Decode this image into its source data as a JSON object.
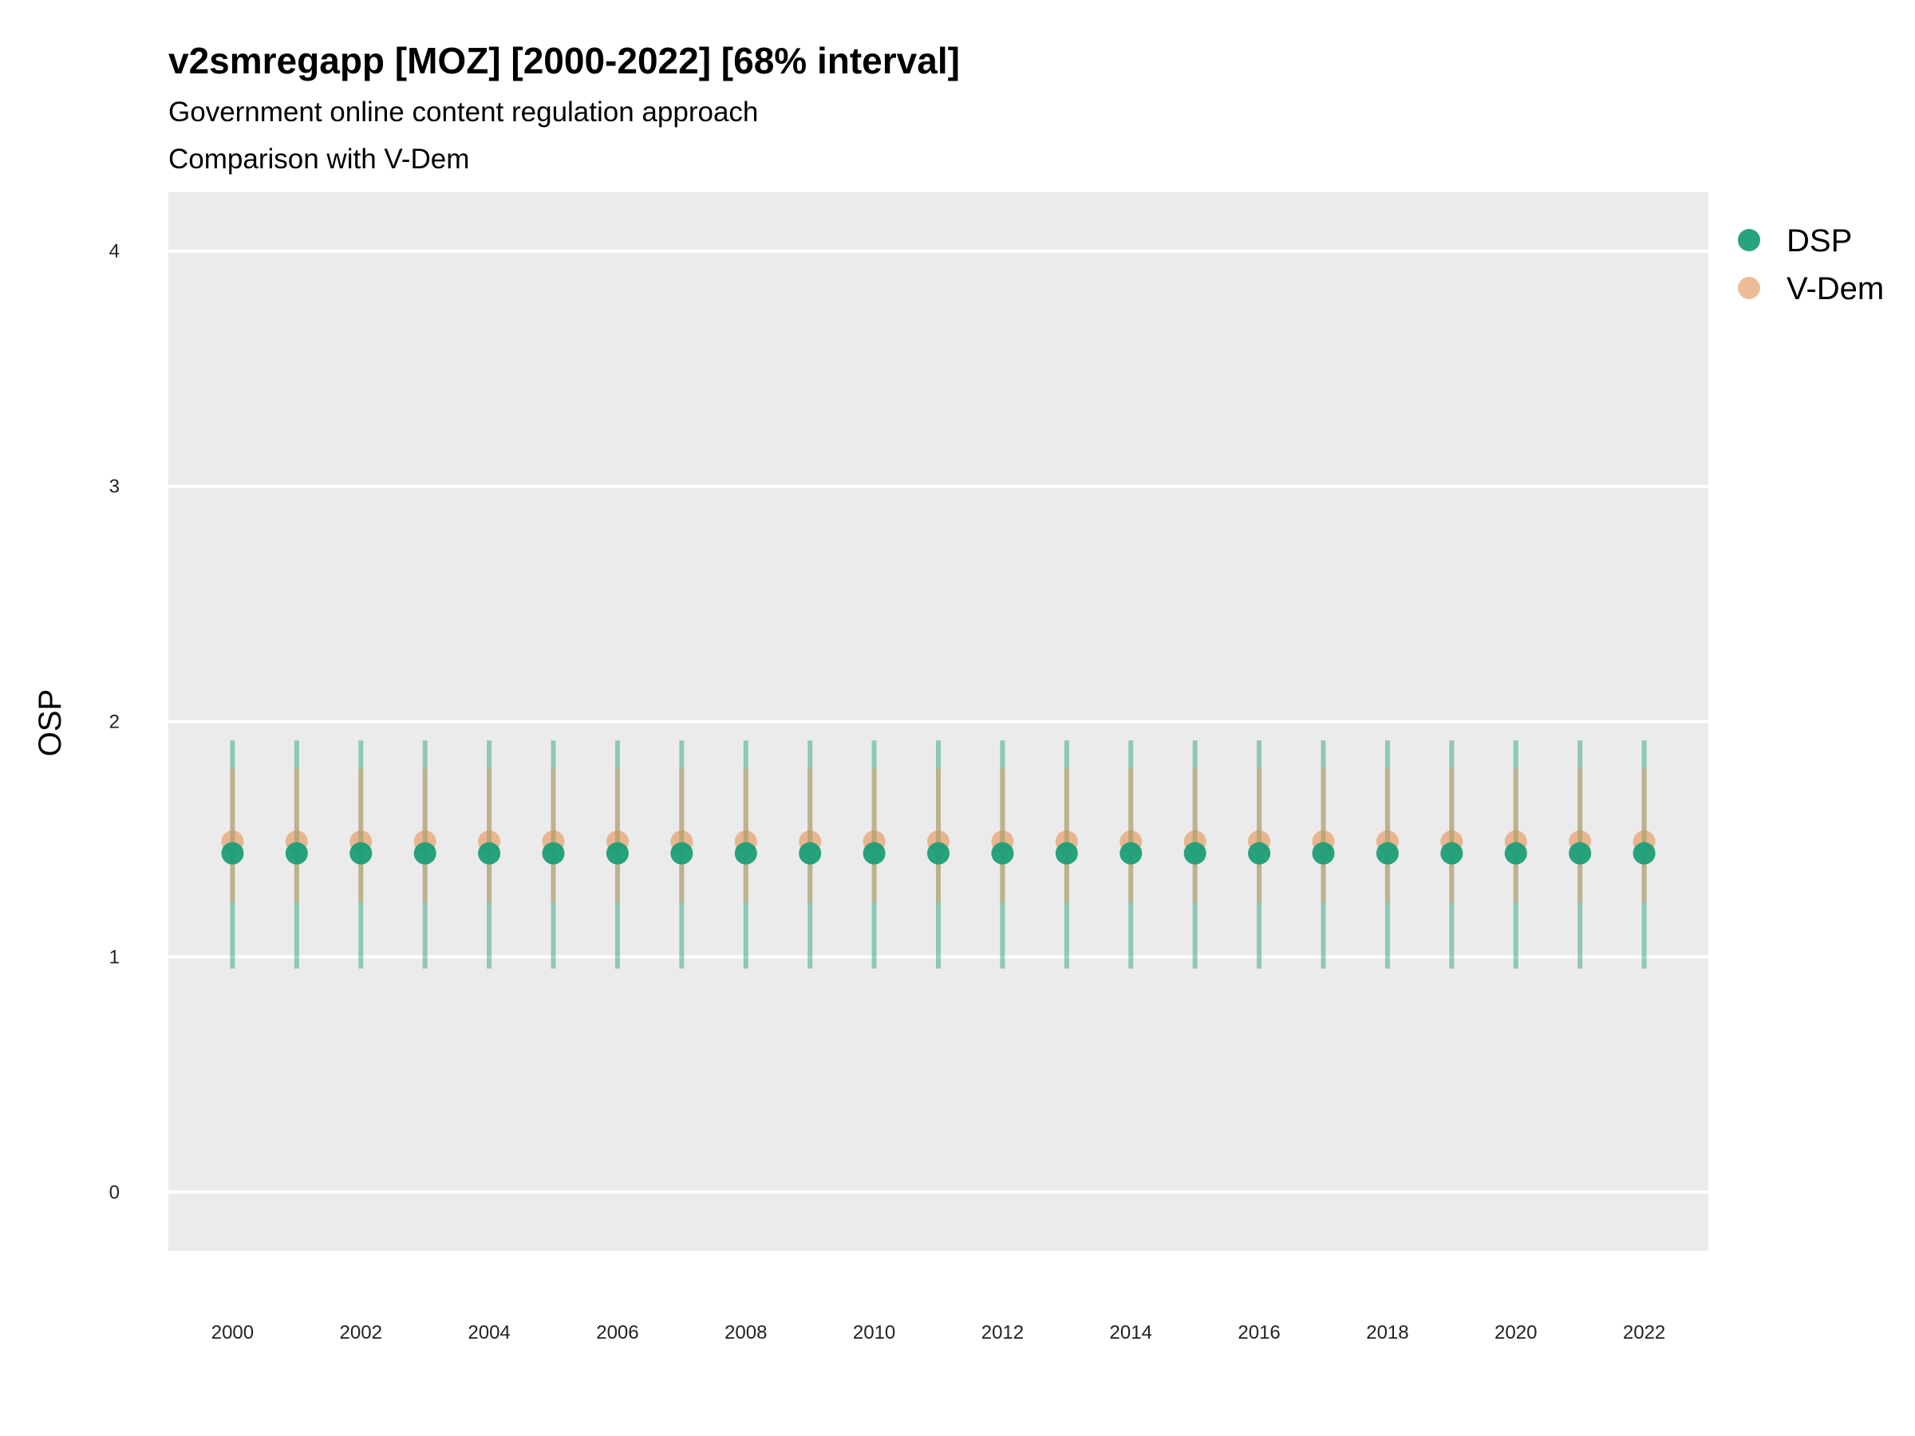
{
  "chart_data": {
    "type": "scatter",
    "title": "v2smregapp [MOZ] [2000-2022] [68% interval]",
    "subtitle": "Government online content regulation approach",
    "subtitle2": "Comparison with V-Dem",
    "xlabel": "",
    "ylabel": "OSP",
    "ylim": [
      -0.25,
      4.25
    ],
    "yticks": [
      0,
      1,
      2,
      3,
      4
    ],
    "xticks": [
      2000,
      2002,
      2004,
      2006,
      2008,
      2010,
      2012,
      2014,
      2016,
      2018,
      2020,
      2022
    ],
    "x": [
      2000,
      2001,
      2002,
      2003,
      2004,
      2005,
      2006,
      2007,
      2008,
      2009,
      2010,
      2011,
      2012,
      2013,
      2014,
      2015,
      2016,
      2017,
      2018,
      2019,
      2020,
      2021,
      2022
    ],
    "grid": true,
    "legend_position": "right",
    "series": [
      {
        "name": "DSP",
        "color": "#1b9e77",
        "values": [
          1.44,
          1.44,
          1.44,
          1.44,
          1.44,
          1.44,
          1.44,
          1.44,
          1.44,
          1.44,
          1.44,
          1.44,
          1.44,
          1.44,
          1.44,
          1.44,
          1.44,
          1.44,
          1.44,
          1.44,
          1.44,
          1.44,
          1.44
        ],
        "lower": [
          0.95,
          0.95,
          0.95,
          0.95,
          0.95,
          0.95,
          0.95,
          0.95,
          0.95,
          0.95,
          0.95,
          0.95,
          0.95,
          0.95,
          0.95,
          0.95,
          0.95,
          0.95,
          0.95,
          0.95,
          0.95,
          0.95,
          0.95
        ],
        "upper": [
          1.92,
          1.92,
          1.92,
          1.92,
          1.92,
          1.92,
          1.92,
          1.92,
          1.92,
          1.92,
          1.92,
          1.92,
          1.92,
          1.92,
          1.92,
          1.92,
          1.92,
          1.92,
          1.92,
          1.92,
          1.92,
          1.92,
          1.92
        ]
      },
      {
        "name": "V-Dem",
        "color": "#e6a06b",
        "values": [
          1.49,
          1.49,
          1.49,
          1.49,
          1.49,
          1.49,
          1.49,
          1.49,
          1.49,
          1.49,
          1.49,
          1.49,
          1.49,
          1.49,
          1.49,
          1.49,
          1.49,
          1.49,
          1.49,
          1.49,
          1.49,
          1.49,
          1.49
        ],
        "lower": [
          1.23,
          1.23,
          1.23,
          1.23,
          1.23,
          1.23,
          1.23,
          1.23,
          1.23,
          1.23,
          1.23,
          1.23,
          1.23,
          1.23,
          1.23,
          1.23,
          1.23,
          1.23,
          1.23,
          1.23,
          1.23,
          1.23,
          1.23
        ],
        "upper": [
          1.8,
          1.8,
          1.8,
          1.8,
          1.8,
          1.8,
          1.8,
          1.8,
          1.8,
          1.8,
          1.8,
          1.8,
          1.8,
          1.8,
          1.8,
          1.8,
          1.8,
          1.8,
          1.8,
          1.8,
          1.8,
          1.8,
          1.8
        ]
      }
    ]
  }
}
